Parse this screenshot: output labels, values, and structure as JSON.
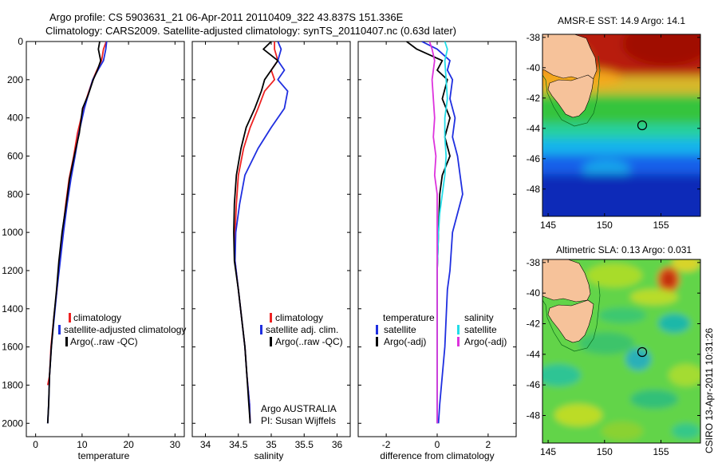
{
  "header": {
    "line1": "Argo profile: CS 5903631_21 06-Apr-2011 20110409_322 43.837S 151.336E",
    "line2": "Climatology: CARS2009. Satellite-adjusted climatology: synTS_20110407.nc (0.63d later)"
  },
  "footer_stamp": "CSIRO 13-Apr-2011 10:31:26",
  "colors": {
    "climatology": "#ee2222",
    "satellite": "#1f2fe0",
    "argo": "#000000",
    "sal_satellite": "#22dde8",
    "sal_argo": "#dd33dd",
    "land": "#f6c29a"
  },
  "chart_data": [
    {
      "type": "line",
      "xlabel": "temperature",
      "x_ticks": [
        "0",
        "10",
        "20",
        "30"
      ],
      "y_ticks": [
        "0",
        "200",
        "400",
        "600",
        "800",
        "1000",
        "1200",
        "1400",
        "1600",
        "1800",
        "2000"
      ],
      "xlim": [
        -2,
        32
      ],
      "ylim": [
        0,
        2070
      ],
      "legend": [
        "climatology",
        "satellite-adjusted climatology",
        "Argo(..raw -QC)"
      ],
      "series": [
        {
          "name": "climatology",
          "color": "#ee2222",
          "x": [
            15.2,
            14.6,
            14.2,
            13.2,
            12.3,
            11.2,
            10.3,
            9.0,
            8.2,
            7.2,
            6.5,
            5.8,
            5.1,
            4.6,
            3.9,
            3.3,
            3.0,
            2.6
          ],
          "y": [
            0,
            40,
            100,
            150,
            200,
            280,
            350,
            480,
            600,
            720,
            850,
            1000,
            1150,
            1300,
            1450,
            1600,
            1750,
            1800
          ]
        },
        {
          "name": "satellite-adjusted climatology",
          "color": "#1f2fe0",
          "x": [
            15.3,
            15.1,
            14.6,
            13.4,
            12.3,
            11.3,
            10.5,
            9.3,
            8.5,
            7.6,
            6.8,
            6.0,
            5.3,
            4.6,
            4.0,
            3.4,
            3.0,
            2.8,
            2.6
          ],
          "y": [
            0,
            40,
            100,
            150,
            200,
            280,
            350,
            480,
            600,
            720,
            850,
            1000,
            1150,
            1300,
            1450,
            1600,
            1750,
            1900,
            2000
          ]
        },
        {
          "name": "Argo(..raw -QC)",
          "color": "#000000",
          "x": [
            13.8,
            13.5,
            14.0,
            13.3,
            12.4,
            11.3,
            10.1,
            9.4,
            8.3,
            7.3,
            6.6,
            5.7,
            5.0,
            4.5,
            3.9,
            3.4,
            3.0,
            2.8,
            2.6
          ],
          "y": [
            0,
            40,
            100,
            150,
            200,
            280,
            350,
            480,
            600,
            720,
            850,
            1000,
            1150,
            1300,
            1450,
            1600,
            1750,
            1900,
            2000
          ]
        }
      ]
    },
    {
      "type": "line",
      "xlabel": "salinity",
      "x_ticks": [
        "34",
        "34.5",
        "35",
        "35.5",
        "36"
      ],
      "xlim": [
        33.8,
        36.2
      ],
      "ylim": [
        0,
        2070
      ],
      "legend": [
        "climatology",
        "satellite adj. clim.",
        "Argo(..raw -QC)"
      ],
      "annotation": [
        "Argo AUSTRALIA",
        "PI: Susan Wijffels"
      ],
      "series": [
        {
          "name": "climatology",
          "color": "#ee2222",
          "x": [
            35.05,
            35.05,
            35.1,
            35.0,
            35.05,
            34.9,
            34.8,
            34.68,
            34.58,
            34.5,
            34.47,
            34.45,
            34.45,
            34.5,
            34.55,
            34.6,
            34.63,
            34.67,
            34.68
          ],
          "y": [
            0,
            40,
            100,
            150,
            200,
            260,
            350,
            450,
            560,
            700,
            850,
            1000,
            1150,
            1300,
            1450,
            1600,
            1750,
            1900,
            2000
          ]
        },
        {
          "name": "satellite adj. clim.",
          "color": "#1f2fe0",
          "x": [
            35.1,
            35.15,
            35.1,
            35.2,
            35.1,
            35.25,
            35.2,
            35.0,
            34.8,
            34.6,
            34.52,
            34.46,
            34.45,
            34.5,
            34.55,
            34.6,
            34.63,
            34.67,
            34.68
          ],
          "y": [
            0,
            40,
            100,
            150,
            200,
            260,
            350,
            450,
            560,
            700,
            850,
            1000,
            1150,
            1300,
            1450,
            1600,
            1750,
            1900,
            2000
          ]
        },
        {
          "name": "Argo(..raw -QC)",
          "color": "#000000",
          "x": [
            35.0,
            34.88,
            35.1,
            35.0,
            34.9,
            34.85,
            34.75,
            34.62,
            34.54,
            34.47,
            34.44,
            34.43,
            34.44,
            34.5,
            34.55,
            34.6,
            34.63,
            34.66,
            34.68
          ],
          "y": [
            0,
            40,
            100,
            150,
            200,
            260,
            350,
            450,
            560,
            700,
            850,
            1000,
            1150,
            1300,
            1450,
            1600,
            1750,
            1900,
            2000
          ]
        }
      ]
    },
    {
      "type": "line",
      "xlabel": "difference from climatology",
      "x_ticks": [
        "-2",
        "0",
        "2"
      ],
      "xlim": [
        -3.1,
        3.1
      ],
      "ylim": [
        0,
        2070
      ],
      "legend_temperature": {
        "title": "temperature",
        "items": [
          "satellite",
          "Argo(-adj)"
        ]
      },
      "legend_salinity": {
        "title": "salinity",
        "items": [
          "satellite",
          "Argo(-adj)"
        ]
      },
      "series": [
        {
          "name": "temperature satellite",
          "color": "#1f2fe0",
          "x": [
            -0.6,
            0.0,
            0.5,
            0.4,
            0.6,
            0.5,
            0.7,
            0.6,
            0.8,
            0.9,
            1.0,
            0.6,
            0.5,
            0.4,
            0.35,
            0.3,
            0.2,
            0.1,
            0.05
          ],
          "y": [
            0,
            40,
            100,
            150,
            200,
            300,
            400,
            500,
            600,
            700,
            800,
            1000,
            1200,
            1300,
            1450,
            1600,
            1750,
            1900,
            2000
          ]
        },
        {
          "name": "temperature Argo(-adj)",
          "color": "#000000",
          "x": [
            -1.2,
            -0.8,
            0.2,
            0.0,
            0.4,
            0.2,
            0.5,
            0.3,
            0.5,
            0.2,
            0.1,
            0.05,
            0.0,
            0.0,
            0.0,
            0.0,
            0.0
          ],
          "y": [
            0,
            40,
            100,
            150,
            200,
            300,
            400,
            500,
            600,
            700,
            800,
            1000,
            1200,
            1400,
            1600,
            1800,
            2000
          ]
        },
        {
          "name": "salinity satellite",
          "color": "#22dde8",
          "x": [
            0.3,
            0.4,
            0.3,
            0.35,
            0.4,
            0.3,
            0.3,
            0.35,
            0.3,
            0.2,
            0.1,
            0.05,
            0.0,
            0.0,
            0.0,
            0.0
          ],
          "y": [
            0,
            40,
            100,
            200,
            300,
            400,
            500,
            600,
            700,
            800,
            900,
            1000,
            1200,
            1400,
            1600,
            2000
          ]
        },
        {
          "name": "salinity Argo(-adj)",
          "color": "#dd33dd",
          "x": [
            -0.3,
            -0.2,
            -0.1,
            -0.2,
            -0.15,
            -0.1,
            -0.15,
            -0.05,
            -0.1,
            0.0,
            0.0,
            0.0,
            0.0,
            0.0
          ],
          "y": [
            0,
            40,
            100,
            200,
            300,
            400,
            500,
            600,
            700,
            800,
            900,
            1000,
            1200,
            2000
          ]
        }
      ]
    },
    {
      "type": "heatmap",
      "title": "AMSR-E SST: 14.9 Argo: 14.1",
      "x_ticks": [
        "145",
        "150",
        "155"
      ],
      "y_ticks": [
        "-38",
        "-40",
        "-42",
        "-44",
        "-46",
        "-48"
      ],
      "xlim": [
        144.5,
        158.5
      ],
      "ylim": [
        -49.8,
        -37.8
      ],
      "argo_position": {
        "lon": 151.336,
        "lat": -43.837
      }
    },
    {
      "type": "heatmap",
      "title": "Altimetric SLA: 0.13 Argo: 0.031",
      "x_ticks": [
        "145",
        "150",
        "155"
      ],
      "y_ticks": [
        "-38",
        "-40",
        "-42",
        "-44",
        "-46",
        "-48"
      ],
      "xlim": [
        144.5,
        158.5
      ],
      "ylim": [
        -49.8,
        -37.8
      ],
      "argo_position": {
        "lon": 151.336,
        "lat": -43.837
      }
    }
  ]
}
